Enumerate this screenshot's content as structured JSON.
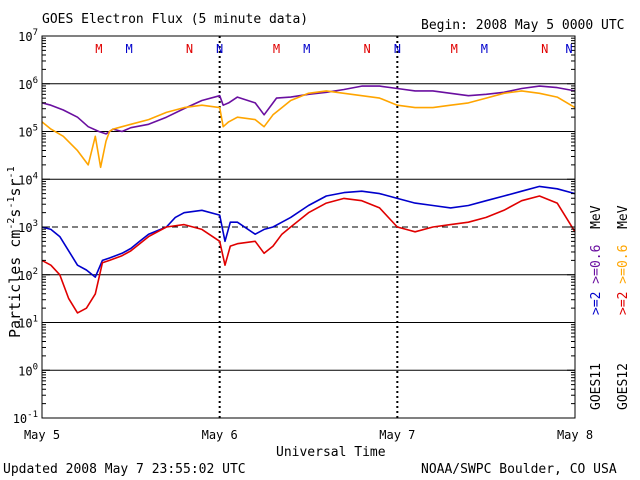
{
  "chart_data": {
    "type": "line",
    "title": "GOES Electron Flux (5 minute data)",
    "begin": "Begin: 2008 May 5 0000 UTC",
    "xlabel": "Universal Time",
    "ylabel_main": "Particles cm",
    "ylabel_sup1": "-2",
    "ylabel_mid1": "s",
    "ylabel_sup2": "-1",
    "ylabel_mid2": "sr",
    "ylabel_sup3": "-1",
    "updated": "Updated 2008 May  7 23:55:02 UTC",
    "credit": "NOAA/SWPC Boulder, CO USA",
    "y_scale": "log",
    "ylim_exp": [
      -1,
      7
    ],
    "y_ticks": [
      {
        "base": "10",
        "exp": "7",
        "e": 7
      },
      {
        "base": "10",
        "exp": "6",
        "e": 6
      },
      {
        "base": "10",
        "exp": "5",
        "e": 5
      },
      {
        "base": "10",
        "exp": "4",
        "e": 4
      },
      {
        "base": "10",
        "exp": "3",
        "e": 3
      },
      {
        "base": "10",
        "exp": "2",
        "e": 2
      },
      {
        "base": "10",
        "exp": "1",
        "e": 1
      },
      {
        "base": "10",
        "exp": "0",
        "e": 0
      },
      {
        "base": "10",
        "exp": "-1",
        "e": -1
      }
    ],
    "xlim_days": [
      0,
      3
    ],
    "x_ticks": [
      {
        "label": "May 5",
        "day": 0
      },
      {
        "label": "May 6",
        "day": 1
      },
      {
        "label": "May 7",
        "day": 2
      },
      {
        "label": "May 8",
        "day": 3
      }
    ],
    "threshold_exp": 3,
    "markers": [
      {
        "label": "M",
        "color": "#e00000",
        "day": 0.32
      },
      {
        "label": "M",
        "color": "#0000cc",
        "day": 0.49
      },
      {
        "label": "N",
        "color": "#e00000",
        "day": 0.83
      },
      {
        "label": "N",
        "color": "#0000cc",
        "day": 1.0
      },
      {
        "label": "M",
        "color": "#e00000",
        "day": 1.32
      },
      {
        "label": "M",
        "color": "#0000cc",
        "day": 1.49
      },
      {
        "label": "N",
        "color": "#e00000",
        "day": 1.83
      },
      {
        "label": "N",
        "color": "#0000cc",
        "day": 2.0
      },
      {
        "label": "M",
        "color": "#e00000",
        "day": 2.32
      },
      {
        "label": "M",
        "color": "#0000cc",
        "day": 2.49
      },
      {
        "label": "N",
        "color": "#e00000",
        "day": 2.83
      },
      {
        "label": "N",
        "color": "#0000cc",
        "day": 3.0
      }
    ],
    "legend": {
      "goes11": "GOES11",
      "goes12": "GOES12",
      "line1": [
        {
          "text": ">=2",
          "color": "#0000cc"
        },
        {
          "text": " ",
          "color": "#000000"
        },
        {
          "text": ">=0.6",
          "color": "#6a0fa0"
        },
        {
          "text": "  MeV",
          "color": "#000000"
        }
      ],
      "line2": [
        {
          "text": ">=2",
          "color": "#e00000"
        },
        {
          "text": " ",
          "color": "#000000"
        },
        {
          "text": ">=0.6",
          "color": "#ffa500"
        },
        {
          "text": "  MeV",
          "color": "#000000"
        }
      ]
    },
    "series": [
      {
        "key": "g11_06",
        "color": "#6a0fa0",
        "x": [
          0,
          0.05,
          0.12,
          0.2,
          0.26,
          0.32,
          0.36,
          0.4,
          0.45,
          0.5,
          0.6,
          0.7,
          0.8,
          0.9,
          1.0,
          1.02,
          1.05,
          1.1,
          1.2,
          1.25,
          1.3,
          1.32,
          1.4,
          1.5,
          1.6,
          1.7,
          1.8,
          1.9,
          2.0,
          2.1,
          2.2,
          2.3,
          2.4,
          2.5,
          2.6,
          2.7,
          2.8,
          2.9,
          3.0
        ],
        "y": [
          5.6,
          5.55,
          5.45,
          5.3,
          5.1,
          5.0,
          4.95,
          5.05,
          5.0,
          5.08,
          5.15,
          5.3,
          5.48,
          5.65,
          5.75,
          5.55,
          5.6,
          5.72,
          5.6,
          5.35,
          5.6,
          5.7,
          5.72,
          5.78,
          5.82,
          5.88,
          5.95,
          5.95,
          5.9,
          5.85,
          5.85,
          5.8,
          5.75,
          5.78,
          5.82,
          5.9,
          5.95,
          5.92,
          5.85
        ]
      },
      {
        "key": "g12_06",
        "color": "#ffa500",
        "x": [
          0,
          0.05,
          0.12,
          0.2,
          0.26,
          0.3,
          0.33,
          0.36,
          0.38,
          0.4,
          0.45,
          0.5,
          0.6,
          0.7,
          0.8,
          0.9,
          1.0,
          1.02,
          1.05,
          1.1,
          1.2,
          1.25,
          1.3,
          1.35,
          1.4,
          1.5,
          1.6,
          1.7,
          1.8,
          1.9,
          2.0,
          2.1,
          2.2,
          2.3,
          2.4,
          2.5,
          2.6,
          2.7,
          2.8,
          2.9,
          3.0
        ],
        "y": [
          5.2,
          5.05,
          4.9,
          4.6,
          4.3,
          4.9,
          4.25,
          4.8,
          5.0,
          5.05,
          5.1,
          5.15,
          5.25,
          5.4,
          5.5,
          5.55,
          5.5,
          5.1,
          5.2,
          5.3,
          5.25,
          5.1,
          5.35,
          5.5,
          5.65,
          5.8,
          5.85,
          5.8,
          5.75,
          5.7,
          5.55,
          5.5,
          5.5,
          5.55,
          5.6,
          5.7,
          5.8,
          5.85,
          5.8,
          5.72,
          5.5
        ]
      },
      {
        "key": "g11_2",
        "color": "#0000cc",
        "x": [
          0,
          0.05,
          0.1,
          0.15,
          0.2,
          0.25,
          0.3,
          0.34,
          0.38,
          0.45,
          0.5,
          0.55,
          0.6,
          0.7,
          0.75,
          0.8,
          0.9,
          1.0,
          1.03,
          1.06,
          1.1,
          1.2,
          1.25,
          1.3,
          1.35,
          1.4,
          1.5,
          1.6,
          1.7,
          1.8,
          1.9,
          2.0,
          2.1,
          2.2,
          2.3,
          2.4,
          2.5,
          2.6,
          2.7,
          2.8,
          2.9,
          3.0
        ],
        "y": [
          3.0,
          2.95,
          2.8,
          2.5,
          2.2,
          2.1,
          1.95,
          2.3,
          2.35,
          2.45,
          2.55,
          2.7,
          2.85,
          3.0,
          3.2,
          3.3,
          3.35,
          3.25,
          2.7,
          3.1,
          3.1,
          2.85,
          2.95,
          3.0,
          3.1,
          3.2,
          3.45,
          3.65,
          3.72,
          3.75,
          3.7,
          3.6,
          3.5,
          3.45,
          3.4,
          3.45,
          3.55,
          3.65,
          3.75,
          3.85,
          3.8,
          3.7
        ]
      },
      {
        "key": "g12_2",
        "color": "#e00000",
        "x": [
          0,
          0.05,
          0.1,
          0.15,
          0.2,
          0.25,
          0.3,
          0.34,
          0.38,
          0.45,
          0.5,
          0.55,
          0.6,
          0.7,
          0.8,
          0.9,
          1.0,
          1.03,
          1.06,
          1.1,
          1.2,
          1.25,
          1.3,
          1.35,
          1.4,
          1.5,
          1.6,
          1.7,
          1.8,
          1.9,
          2.0,
          2.05,
          2.1,
          2.2,
          2.3,
          2.4,
          2.5,
          2.6,
          2.7,
          2.8,
          2.9,
          3.0
        ],
        "y": [
          2.3,
          2.2,
          2.0,
          1.5,
          1.2,
          1.3,
          1.6,
          2.25,
          2.3,
          2.4,
          2.5,
          2.65,
          2.8,
          3.0,
          3.05,
          2.95,
          2.7,
          2.2,
          2.6,
          2.65,
          2.7,
          2.45,
          2.6,
          2.85,
          3.0,
          3.3,
          3.5,
          3.6,
          3.55,
          3.4,
          3.0,
          2.95,
          2.9,
          3.0,
          3.05,
          3.1,
          3.2,
          3.35,
          3.55,
          3.65,
          3.5,
          2.9
        ]
      }
    ]
  }
}
